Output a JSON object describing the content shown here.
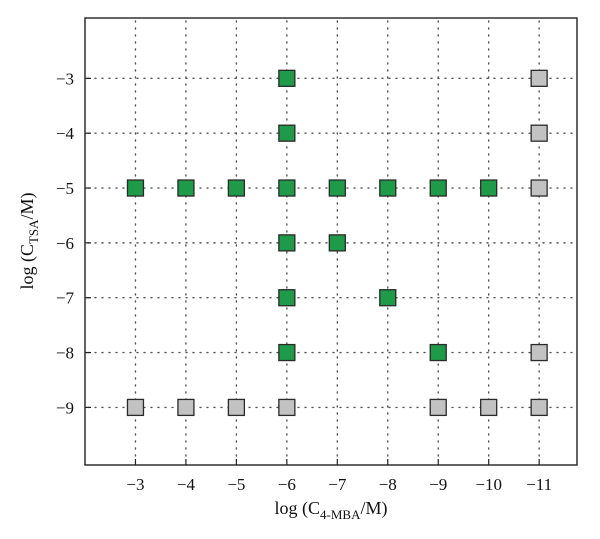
{
  "chart_data": {
    "type": "scatter",
    "title": "",
    "xlabel": {
      "pre": "log (C",
      "sub": "4-MBA",
      "post": "/M)"
    },
    "ylabel": {
      "pre": "log (C",
      "sub": "TSA",
      "post": "/M)"
    },
    "x_ticks": [
      -3,
      -4,
      -5,
      -6,
      -7,
      -8,
      -9,
      -10,
      -11
    ],
    "x_tick_labels": [
      "−3",
      "−4",
      "−5",
      "−6",
      "−7",
      "−8",
      "−9",
      "−10",
      "−11"
    ],
    "y_ticks": [
      -3,
      -4,
      -5,
      -6,
      -7,
      -8,
      -9
    ],
    "y_tick_labels": [
      "−3",
      "−4",
      "−5",
      "−6",
      "−7",
      "−8",
      "−9"
    ],
    "xlim": [
      -2,
      -11.75
    ],
    "ylim": [
      -10.05,
      -1.9
    ],
    "grid": true,
    "marker": "square",
    "colors": {
      "green": "#1f9a48",
      "gray": "#c2c2c2"
    },
    "series": [
      {
        "color": "green",
        "points": [
          [
            -6,
            -3
          ],
          [
            -6,
            -4
          ],
          [
            -3,
            -5
          ],
          [
            -4,
            -5
          ],
          [
            -5,
            -5
          ],
          [
            -6,
            -5
          ],
          [
            -7,
            -5
          ],
          [
            -8,
            -5
          ],
          [
            -9,
            -5
          ],
          [
            -10,
            -5
          ],
          [
            -6,
            -6
          ],
          [
            -7,
            -6
          ],
          [
            -6,
            -7
          ],
          [
            -8,
            -7
          ],
          [
            -6,
            -8
          ],
          [
            -9,
            -8
          ]
        ]
      },
      {
        "color": "gray",
        "points": [
          [
            -11,
            -3
          ],
          [
            -11,
            -4
          ],
          [
            -11,
            -5
          ],
          [
            -11,
            -8
          ],
          [
            -3,
            -9
          ],
          [
            -4,
            -9
          ],
          [
            -5,
            -9
          ],
          [
            -6,
            -9
          ],
          [
            -9,
            -9
          ],
          [
            -10,
            -9
          ],
          [
            -11,
            -9
          ]
        ]
      }
    ]
  }
}
